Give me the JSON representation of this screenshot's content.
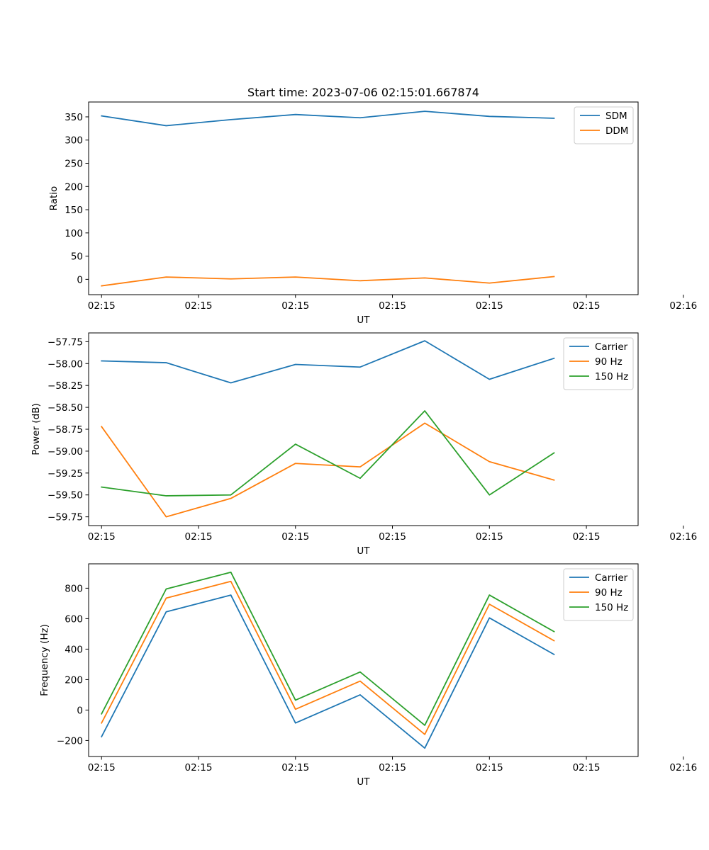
{
  "colors": {
    "blue": "#1f77b4",
    "orange": "#ff7f0e",
    "green": "#2ca02c"
  },
  "chart_data": [
    {
      "type": "line",
      "title": "Start time: 2023-07-06 02:15:01.667874",
      "xlabel": "UT",
      "ylabel": "Ratio",
      "legend_position": "top-right",
      "x": [
        1,
        2,
        3,
        4,
        5,
        6,
        7,
        8
      ],
      "xlim": [
        0.8,
        9.3
      ],
      "xticks": [
        1,
        2.5,
        4,
        5.5,
        7,
        8.5,
        10
      ],
      "xtick_labels": [
        "02:15",
        "02:15",
        "02:15",
        "02:15",
        "02:15",
        "02:15",
        "02:16"
      ],
      "ylim": [
        -33,
        382
      ],
      "yticks": [
        0,
        50,
        100,
        150,
        200,
        250,
        300,
        350
      ],
      "ytick_labels": [
        "0",
        "50",
        "100",
        "150",
        "200",
        "250",
        "300",
        "350"
      ],
      "series": [
        {
          "name": "SDM",
          "color": "#1f77b4",
          "values": [
            352,
            331,
            344,
            355,
            348,
            362,
            351,
            347
          ]
        },
        {
          "name": "DDM",
          "color": "#ff7f0e",
          "values": [
            -14,
            5,
            1,
            5,
            -3,
            3,
            -8,
            6
          ]
        }
      ]
    },
    {
      "type": "line",
      "title": "",
      "xlabel": "UT",
      "ylabel": "Power (dB)",
      "legend_position": "top-right",
      "x": [
        1,
        2,
        3,
        4,
        5,
        6,
        7,
        8
      ],
      "xlim": [
        0.8,
        9.3
      ],
      "xticks": [
        1,
        2.5,
        4,
        5.5,
        7,
        8.5,
        10
      ],
      "xtick_labels": [
        "02:15",
        "02:15",
        "02:15",
        "02:15",
        "02:15",
        "02:15",
        "02:16"
      ],
      "ylim": [
        -59.85,
        -57.65
      ],
      "yticks": [
        -57.75,
        -58.0,
        -58.25,
        -58.5,
        -58.75,
        -59.0,
        -59.25,
        -59.5,
        -59.75
      ],
      "ytick_labels": [
        "−57.75",
        "−58.00",
        "−58.25",
        "−58.50",
        "−58.75",
        "−59.00",
        "−59.25",
        "−59.50",
        "−59.75"
      ],
      "series": [
        {
          "name": "Carrier",
          "color": "#1f77b4",
          "values": [
            -57.97,
            -57.99,
            -58.22,
            -58.01,
            -58.04,
            -57.74,
            -58.18,
            -57.94
          ]
        },
        {
          "name": "90 Hz",
          "color": "#ff7f0e",
          "values": [
            -58.72,
            -59.75,
            -59.54,
            -59.14,
            -59.18,
            -58.68,
            -59.12,
            -59.33
          ]
        },
        {
          "name": "150 Hz",
          "color": "#2ca02c",
          "values": [
            -59.41,
            -59.51,
            -59.5,
            -58.92,
            -59.31,
            -58.54,
            -59.5,
            -59.02
          ]
        }
      ]
    },
    {
      "type": "line",
      "title": "",
      "xlabel": "UT",
      "ylabel": "Frequency (Hz)",
      "legend_position": "top-right",
      "x": [
        1,
        2,
        3,
        4,
        5,
        6,
        7,
        8
      ],
      "xlim": [
        0.8,
        9.3
      ],
      "xticks": [
        1,
        2.5,
        4,
        5.5,
        7,
        8.5,
        10
      ],
      "xtick_labels": [
        "02:15",
        "02:15",
        "02:15",
        "02:15",
        "02:15",
        "02:15",
        "02:16"
      ],
      "ylim": [
        -305,
        960
      ],
      "yticks": [
        -200,
        0,
        200,
        400,
        600,
        800
      ],
      "ytick_labels": [
        "−200",
        "0",
        "200",
        "400",
        "600",
        "800"
      ],
      "series": [
        {
          "name": "Carrier",
          "color": "#1f77b4",
          "values": [
            -175,
            645,
            755,
            -85,
            100,
            -250,
            605,
            365
          ]
        },
        {
          "name": "90 Hz",
          "color": "#ff7f0e",
          "values": [
            -85,
            735,
            845,
            5,
            190,
            -160,
            695,
            455
          ]
        },
        {
          "name": "150 Hz",
          "color": "#2ca02c",
          "values": [
            -25,
            795,
            905,
            65,
            250,
            -100,
            755,
            515
          ]
        }
      ]
    }
  ]
}
